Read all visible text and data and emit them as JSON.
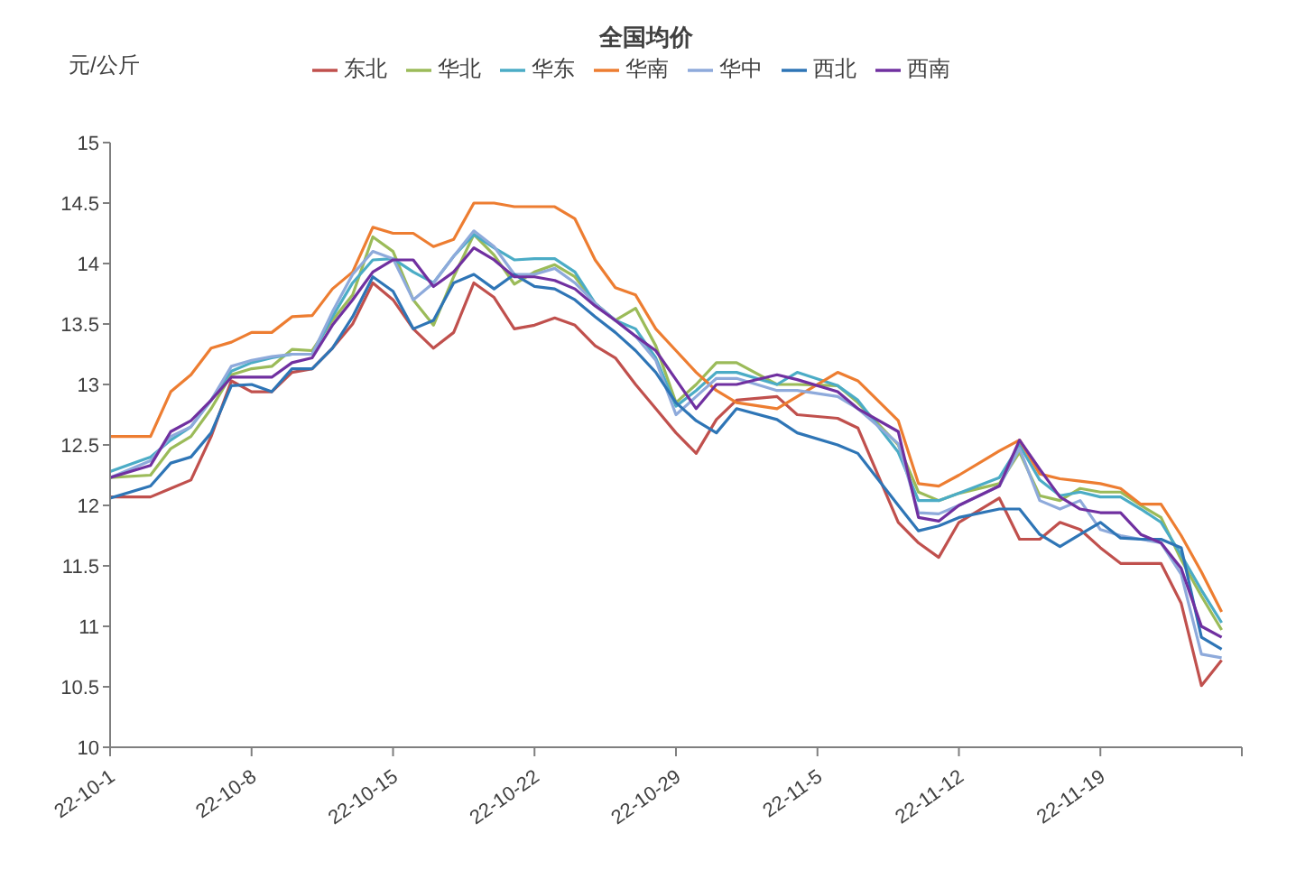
{
  "chart_data": {
    "type": "line",
    "title": "全国均价",
    "ylabel": "元/公斤",
    "x": [
      "--10-01",
      "--10-03",
      "--10-04",
      "--10-05",
      "--10-06",
      "--10-07",
      "--10-08",
      "--10-09",
      "--10-10",
      "--10-11",
      "--10-12",
      "--10-13",
      "--10-14",
      "--10-15",
      "--10-16",
      "--10-17",
      "--10-18",
      "--10-19",
      "--10-20",
      "--10-21",
      "--10-22",
      "--10-23",
      "--10-24",
      "--10-25",
      "--10-26",
      "--10-27",
      "--10-28",
      "--10-29",
      "--10-30",
      "--10-31",
      "--11-01",
      "--11-03",
      "--11-04",
      "--11-06",
      "--11-07",
      "--11-09",
      "--11-10",
      "--11-11",
      "--11-12",
      "--11-14",
      "--11-15",
      "--11-16",
      "--11-17",
      "--11-18",
      "--11-19",
      "--11-20",
      "--11-21",
      "--11-22",
      "--11-23",
      "--11-24",
      "--11-25"
    ],
    "series": [
      {
        "name": "东北",
        "color": "#c0504d",
        "values": [
          12.07,
          12.07,
          12.14,
          12.21,
          12.57,
          13.03,
          12.94,
          12.94,
          13.1,
          13.13,
          13.3,
          13.5,
          13.84,
          13.7,
          13.46,
          13.3,
          13.43,
          13.84,
          13.72,
          13.46,
          13.49,
          13.55,
          13.49,
          13.32,
          13.22,
          13.0,
          12.8,
          12.6,
          12.43,
          12.71,
          12.87,
          12.9,
          12.75,
          12.72,
          12.64,
          11.86,
          11.69,
          11.57,
          11.86,
          12.06,
          11.72,
          11.72,
          11.86,
          11.8,
          11.65,
          11.52,
          11.52,
          11.52,
          11.19,
          10.51,
          10.72
        ]
      },
      {
        "name": "华北",
        "color": "#9bbb59",
        "values": [
          12.23,
          12.25,
          12.47,
          12.57,
          12.8,
          13.08,
          13.13,
          13.15,
          13.29,
          13.28,
          13.53,
          13.74,
          14.22,
          14.1,
          13.7,
          13.49,
          13.89,
          14.24,
          14.07,
          13.83,
          13.93,
          13.99,
          13.89,
          13.67,
          13.53,
          13.63,
          13.32,
          12.85,
          13.0,
          13.18,
          13.18,
          13.0,
          13.0,
          12.99,
          12.85,
          12.5,
          12.11,
          12.04,
          12.1,
          12.18,
          12.44,
          12.08,
          12.04,
          12.14,
          12.11,
          12.11,
          12.0,
          11.9,
          11.55,
          11.25,
          10.97
        ]
      },
      {
        "name": "华东",
        "color": "#4bacc6",
        "values": [
          12.28,
          12.4,
          12.54,
          12.65,
          12.87,
          13.11,
          13.18,
          13.22,
          13.25,
          13.25,
          13.56,
          13.84,
          14.03,
          14.04,
          13.93,
          13.84,
          14.06,
          14.24,
          14.13,
          14.03,
          14.04,
          14.04,
          13.93,
          13.67,
          13.53,
          13.46,
          13.22,
          12.82,
          12.95,
          13.1,
          13.1,
          13.0,
          13.1,
          12.99,
          12.87,
          12.44,
          12.04,
          12.04,
          12.1,
          12.23,
          12.5,
          12.21,
          12.08,
          12.11,
          12.07,
          12.07,
          11.97,
          11.86,
          11.59,
          11.3,
          11.03
        ]
      },
      {
        "name": "华南",
        "color": "#ed7d31",
        "values": [
          12.57,
          12.57,
          12.94,
          13.08,
          13.3,
          13.35,
          13.43,
          13.43,
          13.56,
          13.57,
          13.79,
          13.93,
          14.3,
          14.25,
          14.25,
          14.14,
          14.2,
          14.5,
          14.5,
          14.47,
          14.47,
          14.47,
          14.37,
          14.03,
          13.8,
          13.74,
          13.46,
          13.28,
          13.1,
          12.95,
          12.85,
          12.8,
          12.9,
          13.1,
          13.03,
          12.7,
          12.18,
          12.16,
          12.25,
          12.45,
          12.54,
          12.26,
          12.22,
          12.2,
          12.18,
          12.14,
          12.01,
          12.01,
          11.75,
          11.45,
          11.12
        ]
      },
      {
        "name": "华中",
        "color": "#8eaadb",
        "values": [
          12.23,
          12.37,
          12.57,
          12.65,
          12.87,
          13.15,
          13.2,
          13.23,
          13.25,
          13.25,
          13.6,
          13.91,
          14.1,
          14.04,
          13.7,
          13.84,
          14.06,
          14.27,
          14.14,
          13.91,
          13.91,
          13.96,
          13.84,
          13.67,
          13.53,
          13.4,
          13.2,
          12.75,
          12.9,
          13.05,
          13.05,
          12.95,
          12.95,
          12.9,
          12.8,
          12.51,
          11.94,
          11.93,
          12.0,
          12.16,
          12.47,
          12.04,
          11.97,
          12.04,
          11.8,
          11.75,
          11.72,
          11.69,
          11.43,
          10.77,
          10.74
        ]
      },
      {
        "name": "西北",
        "color": "#2e75b6",
        "values": [
          12.06,
          12.16,
          12.35,
          12.4,
          12.6,
          12.99,
          13.0,
          12.94,
          13.13,
          13.13,
          13.3,
          13.56,
          13.89,
          13.77,
          13.46,
          13.53,
          13.84,
          13.91,
          13.79,
          13.91,
          13.81,
          13.79,
          13.7,
          13.56,
          13.43,
          13.28,
          13.1,
          12.85,
          12.7,
          12.6,
          12.8,
          12.71,
          12.6,
          12.5,
          12.43,
          12.0,
          11.79,
          11.83,
          11.9,
          11.97,
          11.97,
          11.76,
          11.66,
          11.76,
          11.86,
          11.73,
          11.72,
          11.72,
          11.65,
          10.91,
          10.81
        ]
      },
      {
        "name": "西南",
        "color": "#7030a0",
        "values": [
          12.23,
          12.33,
          12.61,
          12.7,
          12.87,
          13.06,
          13.06,
          13.06,
          13.18,
          13.22,
          13.49,
          13.7,
          13.93,
          14.03,
          14.03,
          13.81,
          13.93,
          14.13,
          14.03,
          13.89,
          13.89,
          13.86,
          13.79,
          13.65,
          13.53,
          13.4,
          13.28,
          13.04,
          12.8,
          13.0,
          13.0,
          13.08,
          13.04,
          12.94,
          12.8,
          12.61,
          11.9,
          11.87,
          12.0,
          12.16,
          12.54,
          12.3,
          12.07,
          11.97,
          11.94,
          11.94,
          11.76,
          11.69,
          11.48,
          11.0,
          10.91
        ]
      }
    ],
    "xlim": [
      "--10-01",
      "--11-26"
    ],
    "xticks": [
      {
        "value": "--10-01",
        "label": "22-10-1"
      },
      {
        "value": "--10-08",
        "label": "22-10-8"
      },
      {
        "value": "--10-15",
        "label": "22-10-15"
      },
      {
        "value": "--10-22",
        "label": "22-10-22"
      },
      {
        "value": "--10-29",
        "label": "22-10-29"
      },
      {
        "value": "--11-05",
        "label": "22-11-5"
      },
      {
        "value": "--11-12",
        "label": "22-11-12"
      },
      {
        "value": "--11-19",
        "label": "22-11-19"
      },
      {
        "value": "--11-26",
        "label": null
      }
    ],
    "ylim": [
      10,
      15
    ],
    "yticks": [
      10,
      10.5,
      11,
      11.5,
      12,
      12.5,
      13,
      13.5,
      14,
      14.5,
      15
    ],
    "grid": false,
    "legend": "top",
    "marker": "none",
    "line_style": "solid"
  }
}
